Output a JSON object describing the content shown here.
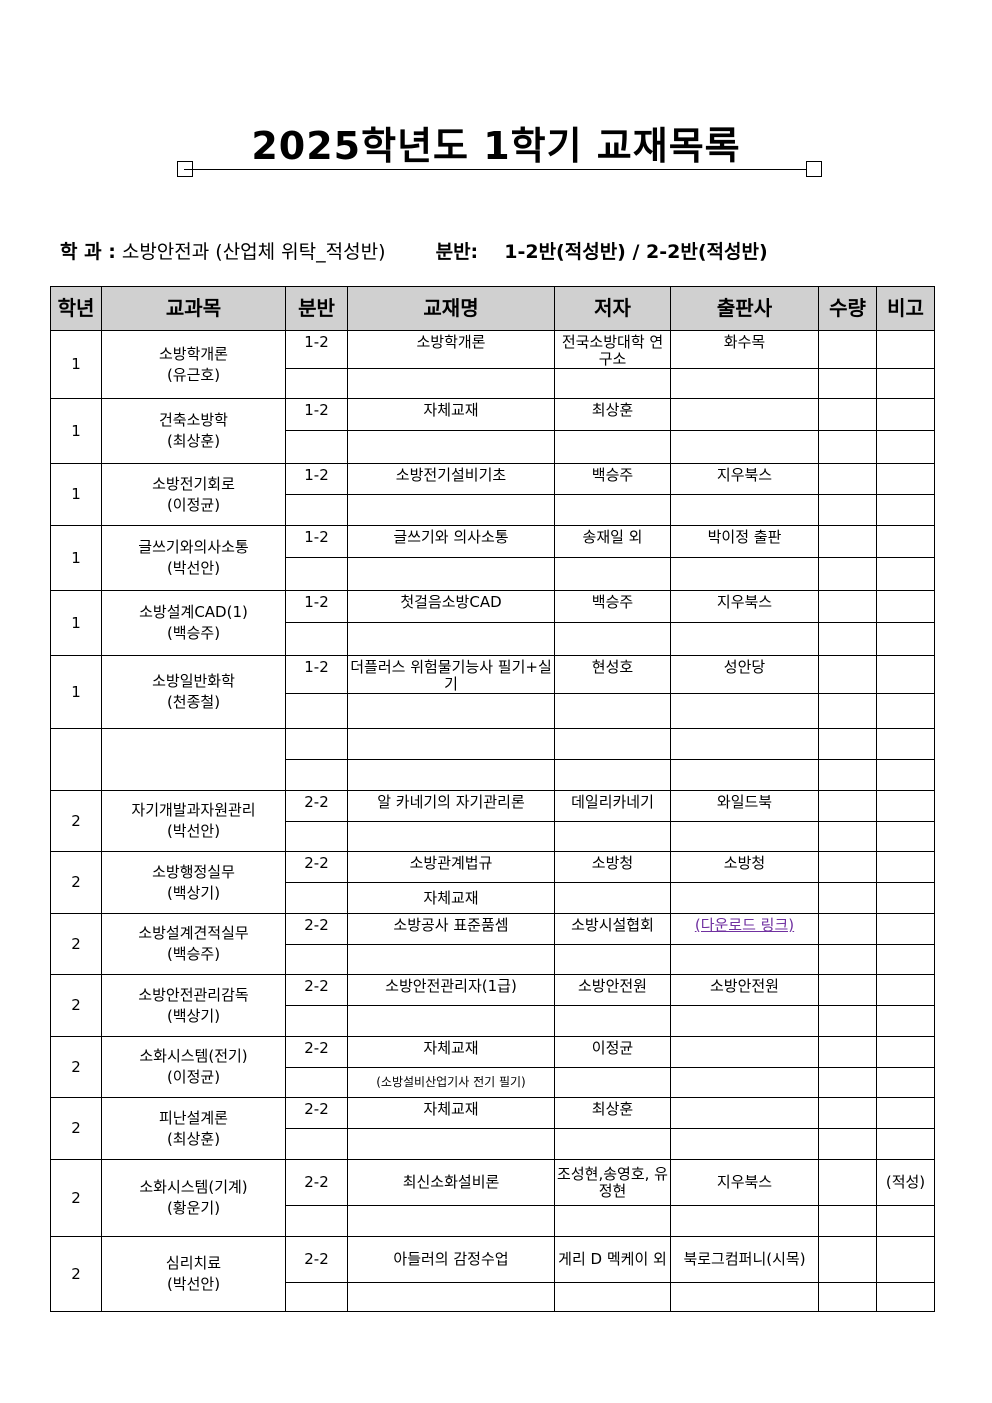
{
  "title": "2025학년도 1학기 교재목록",
  "info": {
    "dept_label": "학 과 :",
    "dept_value": "소방안전과 (산업체 위탁_적성반)",
    "class_label": "분반:",
    "class_value": "1-2반(적성반) / 2-2반(적성반)"
  },
  "headers": [
    "학년",
    "교과목",
    "분반",
    "교재명",
    "저자",
    "출판사",
    "수량",
    "비고"
  ],
  "link_color": "#7030a0",
  "groups": [
    {
      "grade": "1",
      "course": "소방학개론",
      "instructor": "(유근호)",
      "rows": [
        [
          "1-2",
          "소방학개론",
          "전국소방대학 연구소",
          "화수목",
          "",
          ""
        ],
        [
          "",
          "",
          "",
          "",
          "",
          ""
        ]
      ]
    },
    {
      "grade": "1",
      "course": "건축소방학",
      "instructor": "(최상훈)",
      "rows": [
        [
          "1-2",
          "자체교재",
          "최상훈",
          "",
          "",
          ""
        ],
        [
          "",
          "",
          "",
          "",
          "",
          ""
        ]
      ]
    },
    {
      "grade": "1",
      "course": "소방전기회로",
      "instructor": "(이정균)",
      "rows": [
        [
          "1-2",
          "소방전기설비기초",
          "백승주",
          "지우북스",
          "",
          ""
        ],
        [
          "",
          "",
          "",
          "",
          "",
          ""
        ]
      ]
    },
    {
      "grade": "1",
      "course": "글쓰기와의사소통",
      "instructor": "(박선안)",
      "rows": [
        [
          "1-2",
          "글쓰기와 의사소통",
          "송재일 외",
          "박이정 출판",
          "",
          ""
        ],
        [
          "",
          "",
          "",
          "",
          "",
          ""
        ]
      ]
    },
    {
      "grade": "1",
      "course": "소방설계CAD(1)",
      "instructor": "(백승주)",
      "rows": [
        [
          "1-2",
          "첫걸음소방CAD",
          "백승주",
          "지우북스",
          "",
          ""
        ],
        [
          "",
          "",
          "",
          "",
          "",
          ""
        ]
      ]
    },
    {
      "grade": "1",
      "course": "소방일반화학",
      "instructor": "(천종철)",
      "rows": [
        [
          "1-2",
          "더플러스 위험물기능사 필기+실기",
          "현성호",
          "성안당",
          "",
          ""
        ],
        [
          "",
          "",
          "",
          "",
          "",
          ""
        ]
      ]
    },
    {
      "grade": "",
      "course": "",
      "instructor": "",
      "rows": [
        [
          "",
          "",
          "",
          "",
          "",
          ""
        ],
        [
          "",
          "",
          "",
          "",
          "",
          ""
        ]
      ]
    },
    {
      "grade": "2",
      "course": "자기개발과자원관리",
      "instructor": "(박선안)",
      "rows": [
        [
          "2-2",
          "알 카네기의 자기관리론",
          "데일리카네기",
          "와일드북",
          "",
          ""
        ],
        [
          "",
          "",
          "",
          "",
          "",
          ""
        ]
      ]
    },
    {
      "grade": "2",
      "course": "소방행정실무",
      "instructor": "(백상기)",
      "rows": [
        [
          "2-2",
          "소방관계법규",
          "소방청",
          "소방청",
          "",
          ""
        ],
        [
          "",
          "자체교재",
          "",
          "",
          "",
          ""
        ]
      ]
    },
    {
      "grade": "2",
      "course": "소방설계견적실무",
      "instructor": "(백승주)",
      "rows": [
        [
          "2-2",
          "소방공사 표준품셈",
          "소방시설협회",
          "(다운로드 링크)",
          "",
          ""
        ],
        [
          "",
          "",
          "",
          "",
          "",
          ""
        ]
      ]
    },
    {
      "grade": "2",
      "course": "소방안전관리감독",
      "instructor": "(백상기)",
      "rows": [
        [
          "2-2",
          "소방안전관리자(1급)",
          "소방안전원",
          "소방안전원",
          "",
          ""
        ],
        [
          "",
          "",
          "",
          "",
          "",
          ""
        ]
      ]
    },
    {
      "grade": "2",
      "course": "소화시스템(전기)",
      "instructor": "(이정균)",
      "rows": [
        [
          "2-2",
          "자체교재",
          "이정균",
          "",
          "",
          ""
        ],
        [
          "",
          "(소방설비산업기사 전기 필기)",
          "",
          "",
          "",
          ""
        ]
      ]
    },
    {
      "grade": "2",
      "course": "피난설계론",
      "instructor": "(최상훈)",
      "rows": [
        [
          "2-2",
          "자체교재",
          "최상훈",
          "",
          "",
          ""
        ],
        [
          "",
          "",
          "",
          "",
          "",
          ""
        ]
      ]
    },
    {
      "grade": "2",
      "course": "소화시스템(기계)",
      "instructor": "(황운기)",
      "rows": [
        [
          "2-2",
          "최신소화설비론",
          "조성현,송영호, 유정현",
          "지우북스",
          "",
          "(적성)"
        ],
        [
          "",
          "",
          "",
          "",
          "",
          ""
        ]
      ]
    },
    {
      "grade": "2",
      "course": "심리치료",
      "instructor": "(박선안)",
      "rows": [
        [
          "2-2",
          "아들러의 감정수업",
          "게리 D 멕케이 외",
          "북로그컴퍼니(시목)",
          "",
          ""
        ],
        [
          "",
          "",
          "",
          "",
          "",
          ""
        ]
      ]
    }
  ]
}
